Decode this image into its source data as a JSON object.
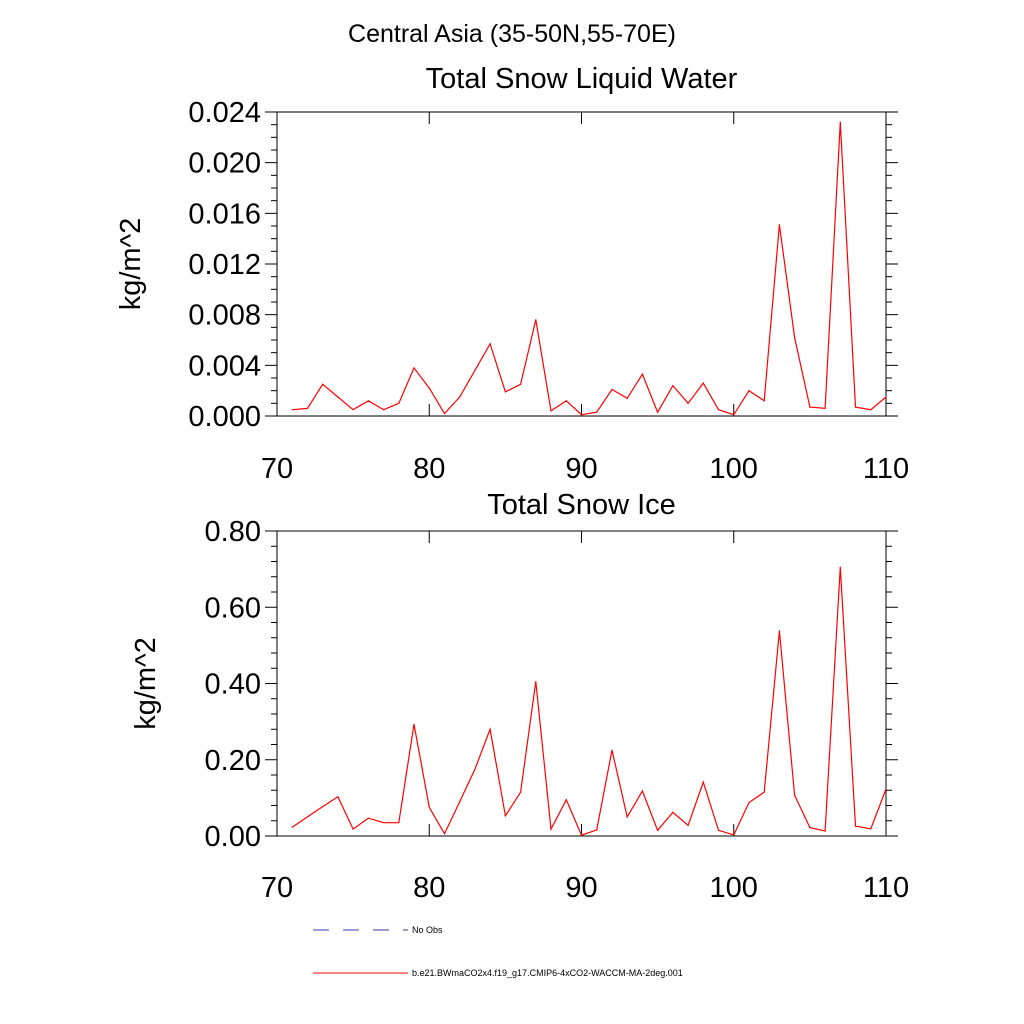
{
  "suptitle": "Central Asia (35-50N,55-70E)",
  "colors": {
    "model": "#ff0000",
    "obs": "#3a3a9a",
    "axis": "#000000"
  },
  "legend": {
    "obs_label": "No Obs",
    "model_label": "b.e21.BWmaCO2x4.f19_g17.CMIP6-4xCO2-WACCM-MA-2deg.001"
  },
  "chart_data": [
    {
      "type": "line",
      "title": "Total Snow Liquid Water",
      "xlabel": "",
      "ylabel": "kg/m^2",
      "xlim": [
        70,
        110
      ],
      "ylim": [
        0,
        0.024
      ],
      "x_ticks": [
        "70",
        "80",
        "90",
        "100",
        "110"
      ],
      "y_ticks": [
        "0.000",
        "0.004",
        "0.008",
        "0.012",
        "0.016",
        "0.020",
        "0.024"
      ],
      "grid": false,
      "series": [
        {
          "name": "b.e21.BWmaCO2x4.f19_g17.CMIP6-4xCO2-WACCM-MA-2deg.001",
          "x": [
            71,
            72,
            73,
            74,
            75,
            76,
            77,
            78,
            79,
            80,
            81,
            82,
            83,
            84,
            85,
            86,
            87,
            88,
            89,
            90,
            91,
            92,
            93,
            94,
            95,
            96,
            97,
            98,
            99,
            100,
            101,
            102,
            103,
            104,
            105,
            106,
            107,
            108,
            109,
            110
          ],
          "y": [
            0.0005,
            0.0006,
            0.0025,
            0.0015,
            0.0005,
            0.0012,
            0.0005,
            0.001,
            0.0038,
            0.0022,
            0.0002,
            0.0015,
            0.0036,
            0.0057,
            0.0019,
            0.0025,
            0.0076,
            0.0004,
            0.0012,
            0.0001,
            0.0003,
            0.0021,
            0.0014,
            0.0033,
            0.0003,
            0.0024,
            0.001,
            0.0026,
            0.0005,
            0.0001,
            0.002,
            0.0012,
            0.0151,
            0.0062,
            0.0007,
            0.0006,
            0.0232,
            0.0007,
            0.0005,
            0.0015
          ]
        }
      ]
    },
    {
      "type": "line",
      "title": "Total Snow Ice",
      "xlabel": "",
      "ylabel": "kg/m^2",
      "xlim": [
        70,
        110
      ],
      "ylim": [
        0,
        0.8
      ],
      "x_ticks": [
        "70",
        "80",
        "90",
        "100",
        "110"
      ],
      "y_ticks": [
        "0.00",
        "0.20",
        "0.40",
        "0.60",
        "0.80"
      ],
      "grid": false,
      "series": [
        {
          "name": "b.e21.BWmaCO2x4.f19_g17.CMIP6-4xCO2-WACCM-MA-2deg.001",
          "x": [
            71,
            72,
            73,
            74,
            75,
            76,
            77,
            78,
            79,
            80,
            81,
            82,
            83,
            84,
            85,
            86,
            87,
            88,
            89,
            90,
            91,
            92,
            93,
            94,
            95,
            96,
            97,
            98,
            99,
            100,
            101,
            102,
            103,
            104,
            105,
            106,
            107,
            108,
            109,
            110
          ],
          "y": [
            0.023,
            0.05,
            0.077,
            0.103,
            0.018,
            0.047,
            0.035,
            0.035,
            0.293,
            0.075,
            0.006,
            0.09,
            0.175,
            0.28,
            0.053,
            0.115,
            0.405,
            0.018,
            0.095,
            0.002,
            0.016,
            0.225,
            0.05,
            0.118,
            0.015,
            0.062,
            0.028,
            0.141,
            0.015,
            0.003,
            0.088,
            0.115,
            0.538,
            0.107,
            0.022,
            0.013,
            0.705,
            0.026,
            0.019,
            0.123
          ]
        }
      ]
    }
  ]
}
